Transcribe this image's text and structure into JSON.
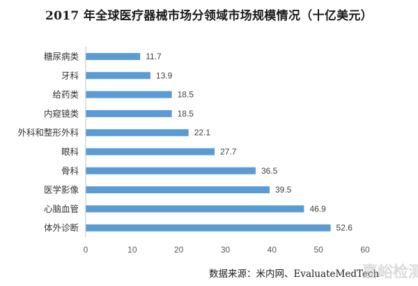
{
  "chart_data": {
    "type": "bar",
    "orientation": "horizontal",
    "title": "2017 年全球医疗器械市场分领域市场规模情况（十亿美元）",
    "categories": [
      "糖尿病类",
      "牙科",
      "给药类",
      "内窥镜类",
      "外科和整形外科",
      "眼科",
      "骨科",
      "医学影像",
      "心脑血管",
      "体外诊断"
    ],
    "values": [
      11.7,
      13.9,
      18.5,
      18.5,
      22.1,
      27.7,
      36.5,
      39.5,
      46.9,
      52.6
    ],
    "value_labels": [
      "11.7",
      "13.9",
      "18.5",
      "18.5",
      "22.1",
      "27.7",
      "36.5",
      "39.5",
      "46.9",
      "52.6"
    ],
    "xlim": [
      0,
      60
    ],
    "x_ticks": [
      0,
      10,
      20,
      30,
      40,
      50,
      60
    ],
    "xlabel": "",
    "ylabel": "",
    "grid": false,
    "legend": "none",
    "bar_color": "#5B9BD5",
    "source": "数据来源：米内网、EvaluateMedTech",
    "watermark": "嘉峪检测网"
  }
}
